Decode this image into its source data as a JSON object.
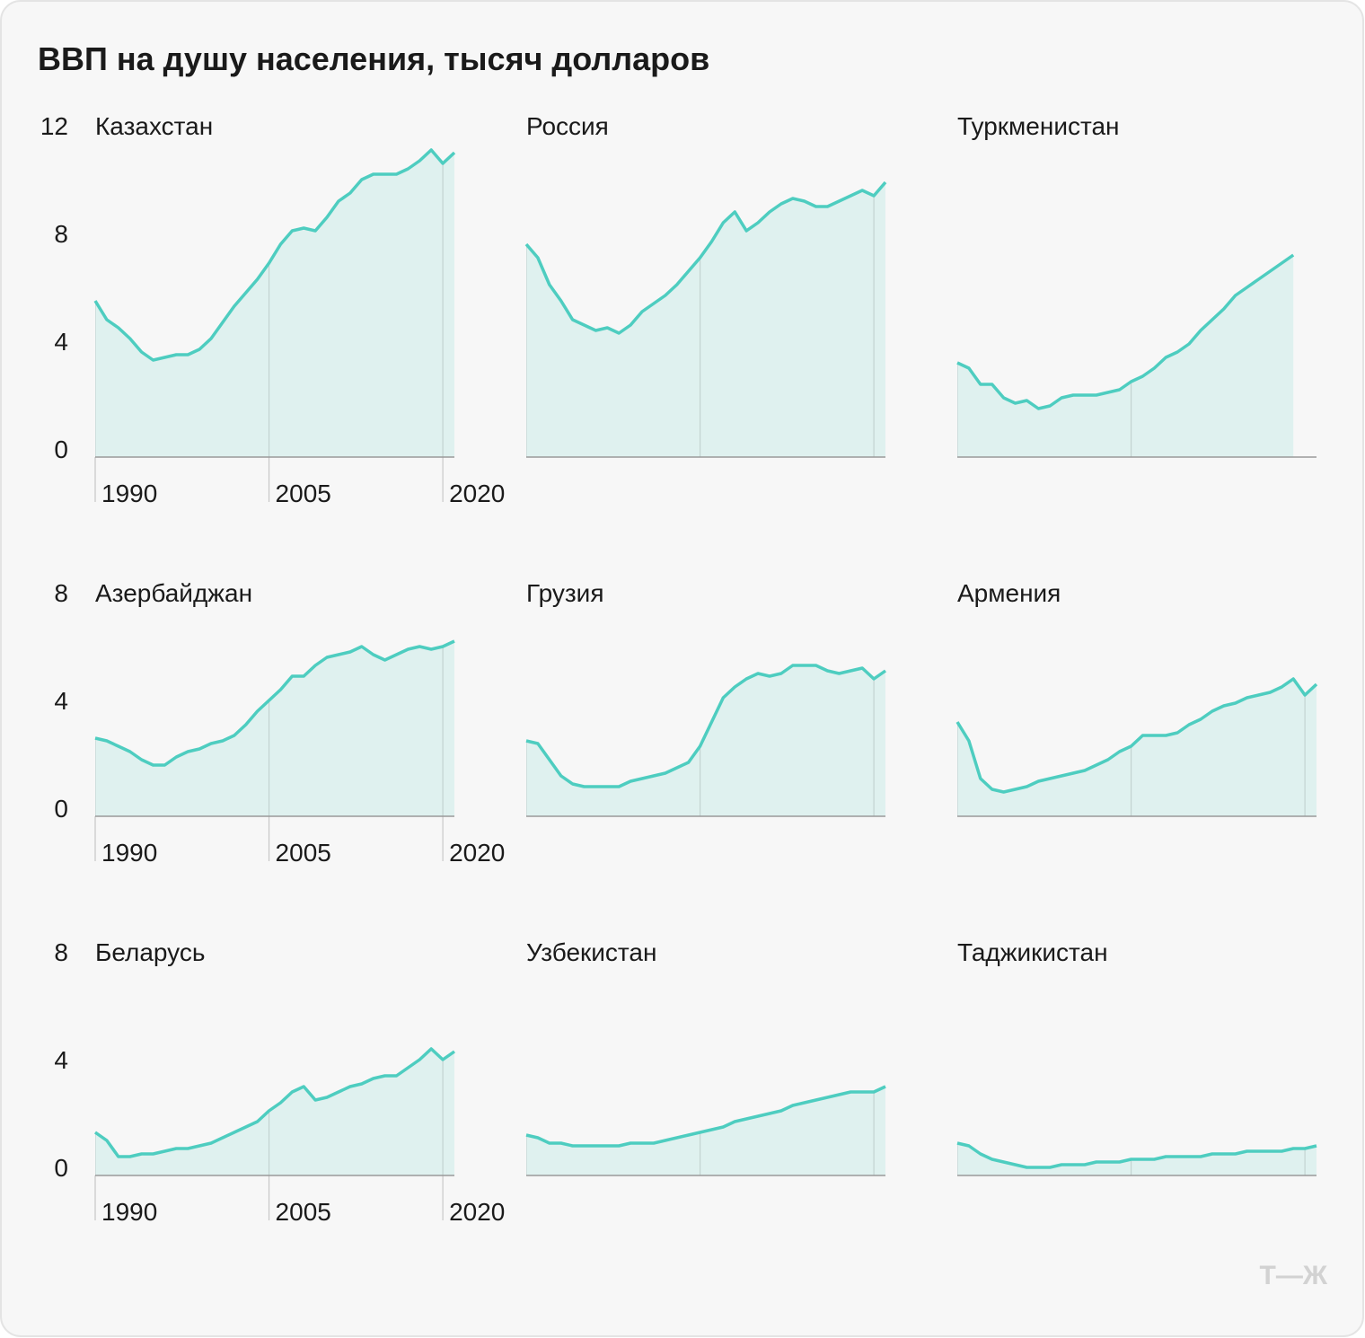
{
  "title": "ВВП на душу населения, тысяч долларов",
  "watermark": "Т—Ж",
  "chart_data": [
    {
      "type": "area-line",
      "title": "Казахстан",
      "color": "#4ecdc0",
      "x": [
        1990,
        1991,
        1992,
        1993,
        1994,
        1995,
        1996,
        1997,
        1998,
        1999,
        2000,
        2001,
        2002,
        2003,
        2004,
        2005,
        2006,
        2007,
        2008,
        2009,
        2010,
        2011,
        2012,
        2013,
        2014,
        2015,
        2016,
        2017,
        2018,
        2019,
        2020,
        2021
      ],
      "values": [
        5.8,
        5.1,
        4.8,
        4.4,
        3.9,
        3.6,
        3.7,
        3.8,
        3.8,
        4.0,
        4.4,
        5.0,
        5.6,
        6.1,
        6.6,
        7.2,
        7.9,
        8.4,
        8.5,
        8.4,
        8.9,
        9.5,
        9.8,
        10.3,
        10.5,
        10.5,
        10.5,
        10.7,
        11.0,
        11.4,
        10.9,
        11.3
      ],
      "xlim": [
        1990,
        2021
      ],
      "xticks": [
        1990,
        2005,
        2020
      ],
      "ylim": [
        0,
        12
      ],
      "yticks": [
        0,
        4,
        8,
        12
      ]
    },
    {
      "type": "area-line",
      "title": "Россия",
      "color": "#4ecdc0",
      "x": [
        1990,
        1991,
        1992,
        1993,
        1994,
        1995,
        1996,
        1997,
        1998,
        1999,
        2000,
        2001,
        2002,
        2003,
        2004,
        2005,
        2006,
        2007,
        2008,
        2009,
        2010,
        2011,
        2012,
        2013,
        2014,
        2015,
        2016,
        2017,
        2018,
        2019,
        2020,
        2021
      ],
      "values": [
        7.9,
        7.4,
        6.4,
        5.8,
        5.1,
        4.9,
        4.7,
        4.8,
        4.6,
        4.9,
        5.4,
        5.7,
        6.0,
        6.4,
        6.9,
        7.4,
        8.0,
        8.7,
        9.1,
        8.4,
        8.7,
        9.1,
        9.4,
        9.6,
        9.5,
        9.3,
        9.3,
        9.5,
        9.7,
        9.9,
        9.7,
        10.2
      ],
      "xlim": [
        1990,
        2021
      ],
      "xticks": [
        1990,
        2005,
        2020
      ],
      "ylim": [
        0,
        12
      ]
    },
    {
      "type": "area-line",
      "title": "Туркменистан",
      "color": "#4ecdc0",
      "x": [
        1990,
        1991,
        1992,
        1993,
        1994,
        1995,
        1996,
        1997,
        1998,
        1999,
        2000,
        2001,
        2002,
        2003,
        2004,
        2005,
        2006,
        2007,
        2008,
        2009,
        2010,
        2011,
        2012,
        2013,
        2014,
        2015,
        2016,
        2017,
        2018,
        2019,
        2020,
        2021
      ],
      "values": [
        3.5,
        3.3,
        2.7,
        2.7,
        2.2,
        2.0,
        2.1,
        1.8,
        1.9,
        2.2,
        2.3,
        2.3,
        2.3,
        2.4,
        2.5,
        2.8,
        3.0,
        3.3,
        3.7,
        3.9,
        4.2,
        4.7,
        5.1,
        5.5,
        6.0,
        6.3,
        6.6,
        6.9,
        7.2,
        7.5,
        null,
        null
      ],
      "xlim": [
        1990,
        2021
      ],
      "xticks": [
        1990,
        2005,
        2020
      ],
      "ylim": [
        0,
        12
      ]
    },
    {
      "type": "area-line",
      "title": "Азербайджан",
      "color": "#4ecdc0",
      "x": [
        1990,
        1991,
        1992,
        1993,
        1994,
        1995,
        1996,
        1997,
        1998,
        1999,
        2000,
        2001,
        2002,
        2003,
        2004,
        2005,
        2006,
        2007,
        2008,
        2009,
        2010,
        2011,
        2012,
        2013,
        2014,
        2015,
        2016,
        2017,
        2018,
        2019,
        2020,
        2021
      ],
      "values": [
        2.9,
        2.8,
        2.6,
        2.4,
        2.1,
        1.9,
        1.9,
        2.2,
        2.4,
        2.5,
        2.7,
        2.8,
        3.0,
        3.4,
        3.9,
        4.3,
        4.7,
        5.2,
        5.2,
        5.6,
        5.9,
        6.0,
        6.1,
        6.3,
        6.0,
        5.8,
        6.0,
        6.2,
        6.3,
        6.2,
        6.3,
        6.5
      ],
      "xlim": [
        1990,
        2021
      ],
      "xticks": [
        1990,
        2005,
        2020
      ],
      "ylim": [
        0,
        8
      ],
      "yticks": [
        0,
        4,
        8
      ]
    },
    {
      "type": "area-line",
      "title": "Грузия",
      "color": "#4ecdc0",
      "x": [
        1990,
        1991,
        1992,
        1993,
        1994,
        1995,
        1996,
        1997,
        1998,
        1999,
        2000,
        2001,
        2002,
        2003,
        2004,
        2005,
        2006,
        2007,
        2008,
        2009,
        2010,
        2011,
        2012,
        2013,
        2014,
        2015,
        2016,
        2017,
        2018,
        2019,
        2020,
        2021
      ],
      "values": [
        2.8,
        2.7,
        2.1,
        1.5,
        1.2,
        1.1,
        1.1,
        1.1,
        1.1,
        1.3,
        1.4,
        1.5,
        1.6,
        1.8,
        2.0,
        2.6,
        3.5,
        4.4,
        4.8,
        5.1,
        5.3,
        5.2,
        5.3,
        5.6,
        5.6,
        5.6,
        5.4,
        5.3,
        5.4,
        5.5,
        5.1,
        5.4
      ],
      "xlim": [
        1990,
        2021
      ],
      "xticks": [
        1990,
        2005,
        2020
      ],
      "ylim": [
        0,
        8
      ]
    },
    {
      "type": "area-line",
      "title": "Армения",
      "color": "#4ecdc0",
      "x": [
        1990,
        1991,
        1992,
        1993,
        1994,
        1995,
        1996,
        1997,
        1998,
        1999,
        2000,
        2001,
        2002,
        2003,
        2004,
        2005,
        2006,
        2007,
        2008,
        2009,
        2010,
        2011,
        2012,
        2013,
        2014,
        2015,
        2016,
        2017,
        2018,
        2019,
        2020,
        2021
      ],
      "values": [
        3.5,
        2.8,
        1.4,
        1.0,
        0.9,
        1.0,
        1.1,
        1.3,
        1.4,
        1.5,
        1.6,
        1.7,
        1.9,
        2.1,
        2.4,
        2.6,
        3.0,
        3.0,
        3.0,
        3.1,
        3.4,
        3.6,
        3.9,
        4.1,
        4.2,
        4.4,
        4.5,
        4.6,
        4.8,
        5.1,
        4.5,
        4.9
      ],
      "xlim": [
        1990,
        2021
      ],
      "xticks": [
        1990,
        2005,
        2020
      ],
      "ylim": [
        0,
        8
      ]
    },
    {
      "type": "area-line",
      "title": "Беларусь",
      "color": "#4ecdc0",
      "x": [
        1990,
        1991,
        1992,
        1993,
        1994,
        1995,
        1996,
        1997,
        1998,
        1999,
        2000,
        2001,
        2002,
        2003,
        2004,
        2005,
        2006,
        2007,
        2008,
        2009,
        2010,
        2011,
        2012,
        2013,
        2014,
        2015,
        2016,
        2017,
        2018,
        2019,
        2020,
        2021
      ],
      "values": [
        1.6,
        1.3,
        0.7,
        0.7,
        0.8,
        0.8,
        0.9,
        1.0,
        1.0,
        1.1,
        1.2,
        1.4,
        1.6,
        1.8,
        2.0,
        2.4,
        2.7,
        3.1,
        3.3,
        2.8,
        2.9,
        3.1,
        3.3,
        3.4,
        3.6,
        3.7,
        3.7,
        4.0,
        4.3,
        4.7,
        4.3,
        4.6
      ],
      "xlim": [
        1990,
        2021
      ],
      "xticks": [
        1990,
        2005,
        2020
      ],
      "ylim": [
        0,
        8
      ],
      "yticks": [
        0,
        4,
        8
      ]
    },
    {
      "type": "area-line",
      "title": "Узбекистан",
      "color": "#4ecdc0",
      "x": [
        1990,
        1991,
        1992,
        1993,
        1994,
        1995,
        1996,
        1997,
        1998,
        1999,
        2000,
        2001,
        2002,
        2003,
        2004,
        2005,
        2006,
        2007,
        2008,
        2009,
        2010,
        2011,
        2012,
        2013,
        2014,
        2015,
        2016,
        2017,
        2018,
        2019,
        2020,
        2021
      ],
      "values": [
        1.5,
        1.4,
        1.2,
        1.2,
        1.1,
        1.1,
        1.1,
        1.1,
        1.1,
        1.2,
        1.2,
        1.2,
        1.3,
        1.4,
        1.5,
        1.6,
        1.7,
        1.8,
        2.0,
        2.1,
        2.2,
        2.3,
        2.4,
        2.6,
        2.7,
        2.8,
        2.9,
        3.0,
        3.1,
        3.1,
        3.1,
        3.3
      ],
      "xlim": [
        1990,
        2021
      ],
      "xticks": [
        1990,
        2005,
        2020
      ],
      "ylim": [
        0,
        8
      ]
    },
    {
      "type": "area-line",
      "title": "Таджикистан",
      "color": "#4ecdc0",
      "x": [
        1990,
        1991,
        1992,
        1993,
        1994,
        1995,
        1996,
        1997,
        1998,
        1999,
        2000,
        2001,
        2002,
        2003,
        2004,
        2005,
        2006,
        2007,
        2008,
        2009,
        2010,
        2011,
        2012,
        2013,
        2014,
        2015,
        2016,
        2017,
        2018,
        2019,
        2020,
        2021
      ],
      "values": [
        1.2,
        1.1,
        0.8,
        0.6,
        0.5,
        0.4,
        0.3,
        0.3,
        0.3,
        0.4,
        0.4,
        0.4,
        0.5,
        0.5,
        0.5,
        0.6,
        0.6,
        0.6,
        0.7,
        0.7,
        0.7,
        0.7,
        0.8,
        0.8,
        0.8,
        0.9,
        0.9,
        0.9,
        0.9,
        1.0,
        1.0,
        1.1
      ],
      "xlim": [
        1990,
        2021
      ],
      "xticks": [
        1990,
        2005,
        2020
      ],
      "ylim": [
        0,
        8
      ]
    }
  ]
}
